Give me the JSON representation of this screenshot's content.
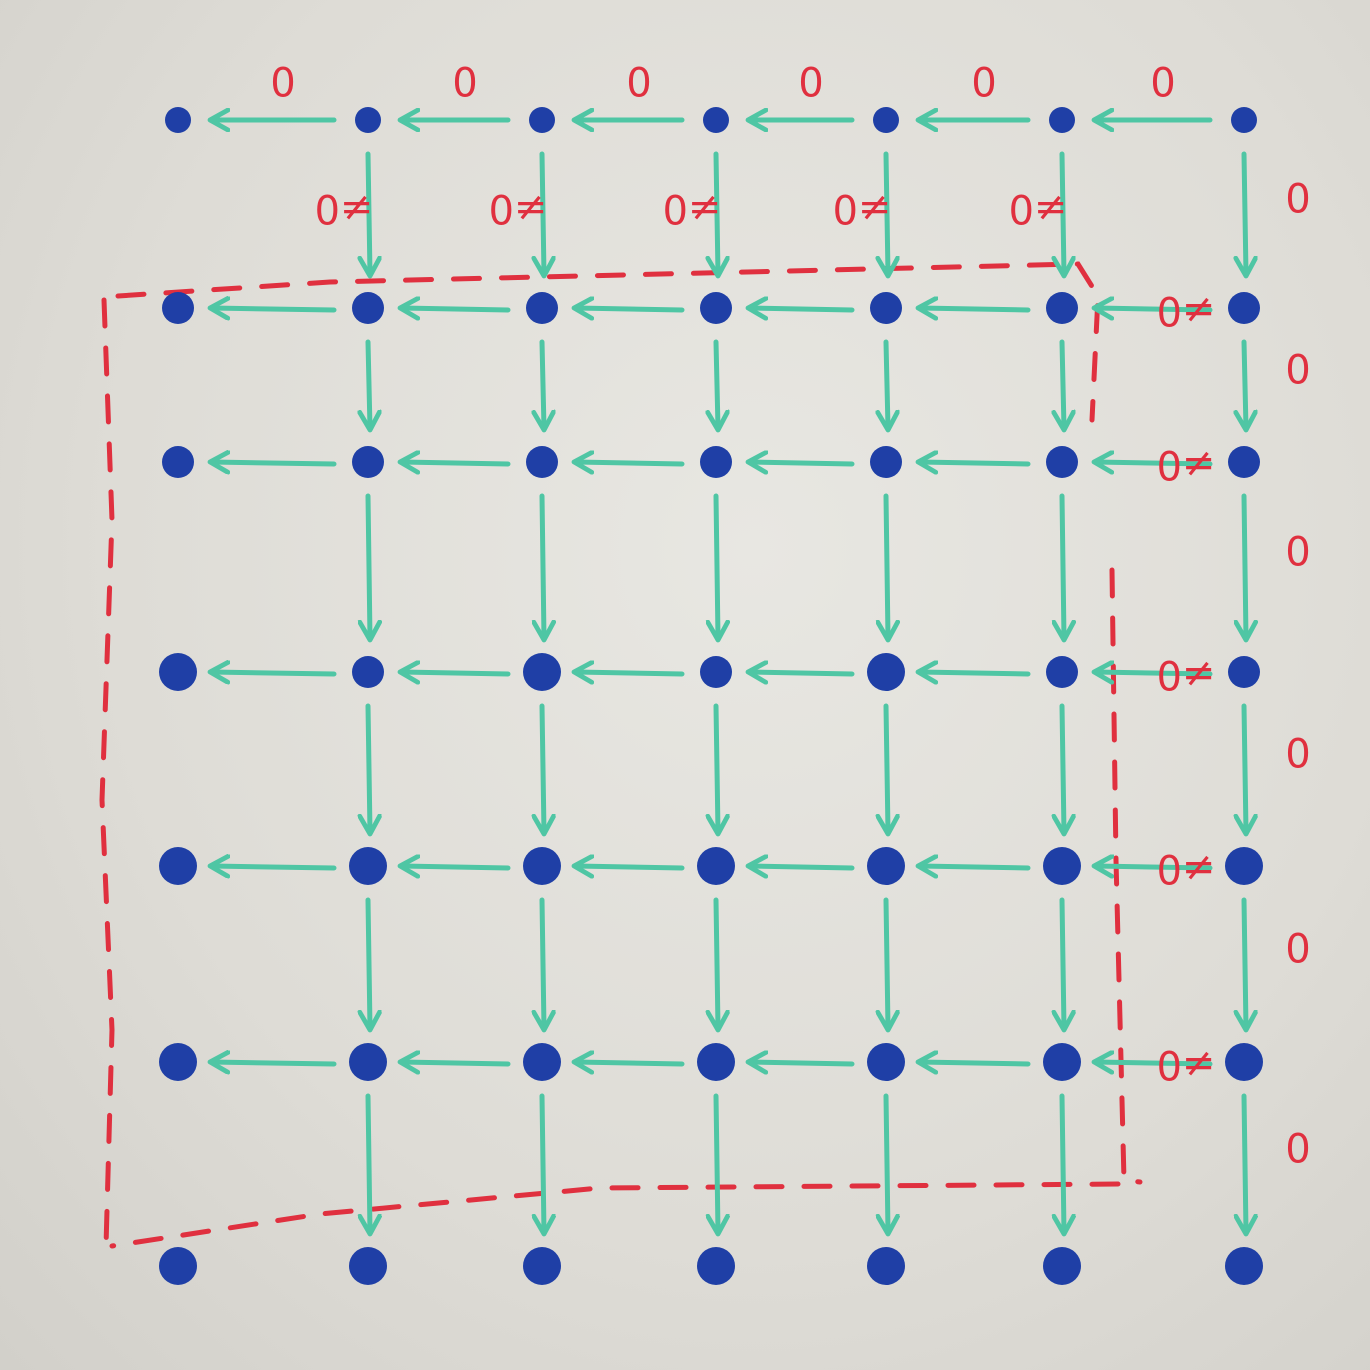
{
  "colors": {
    "node": "#1f3fa6",
    "arrow": "#4fc6a4",
    "label": "#e0303f",
    "dashed_box": "#e0303f"
  },
  "top_row_labels": [
    "0",
    "0",
    "0",
    "0",
    "0",
    "0"
  ],
  "vertical_labels": [
    "≠0",
    "≠0",
    "≠0",
    "≠0",
    "≠0"
  ],
  "right_column_labels": [
    "0",
    "0",
    "0",
    "0",
    "0",
    "0"
  ],
  "right_side_labels": [
    "≠0",
    "≠0",
    "≠0",
    "≠0",
    "≠0"
  ]
}
